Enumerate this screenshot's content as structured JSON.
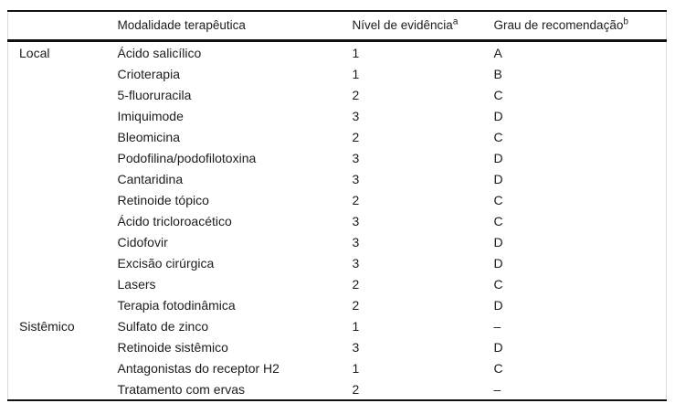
{
  "table": {
    "columns": [
      {
        "label": "",
        "sup": ""
      },
      {
        "label": "Modalidade terapêutica",
        "sup": ""
      },
      {
        "label": "Nível de evidência",
        "sup": "a"
      },
      {
        "label": "Grau de recomendação",
        "sup": "b"
      }
    ],
    "rows": [
      {
        "group": "Local",
        "modality": "Ácido salicílico",
        "evidence": "1",
        "grade": "A"
      },
      {
        "group": "",
        "modality": "Crioterapia",
        "evidence": "1",
        "grade": "B"
      },
      {
        "group": "",
        "modality": "5-fluoruracila",
        "evidence": "2",
        "grade": "C"
      },
      {
        "group": "",
        "modality": "Imiquimode",
        "evidence": "3",
        "grade": "D"
      },
      {
        "group": "",
        "modality": "Bleomicina",
        "evidence": "2",
        "grade": "C"
      },
      {
        "group": "",
        "modality": "Podofilina/podofilotoxina",
        "evidence": "3",
        "grade": "D"
      },
      {
        "group": "",
        "modality": "Cantaridina",
        "evidence": "3",
        "grade": "D"
      },
      {
        "group": "",
        "modality": "Retinoide tópico",
        "evidence": "2",
        "grade": "C"
      },
      {
        "group": "",
        "modality": "Ácido tricloroacético",
        "evidence": "3",
        "grade": "C"
      },
      {
        "group": "",
        "modality": "Cidofovir",
        "evidence": "3",
        "grade": "D"
      },
      {
        "group": "",
        "modality": "Excisão cirúrgica",
        "evidence": "3",
        "grade": "D"
      },
      {
        "group": "",
        "modality": "Lasers",
        "evidence": "2",
        "grade": "C"
      },
      {
        "group": "",
        "modality": "Terapia fotodinâmica",
        "evidence": "2",
        "grade": "D"
      },
      {
        "group": "Sistêmico",
        "modality": "Sulfato de zinco",
        "evidence": "1",
        "grade": "–"
      },
      {
        "group": "",
        "modality": "Retinoide sistêmico",
        "evidence": "3",
        "grade": "D"
      },
      {
        "group": "",
        "modality": "Antagonistas do receptor H2",
        "evidence": "1",
        "grade": "C"
      },
      {
        "group": "",
        "modality": "Tratamento com ervas",
        "evidence": "2",
        "grade": "–"
      }
    ],
    "colors": {
      "rule": "#111111",
      "side_border": "#d9d9d9",
      "text": "#1c1c1c",
      "background": "#ffffff"
    }
  }
}
